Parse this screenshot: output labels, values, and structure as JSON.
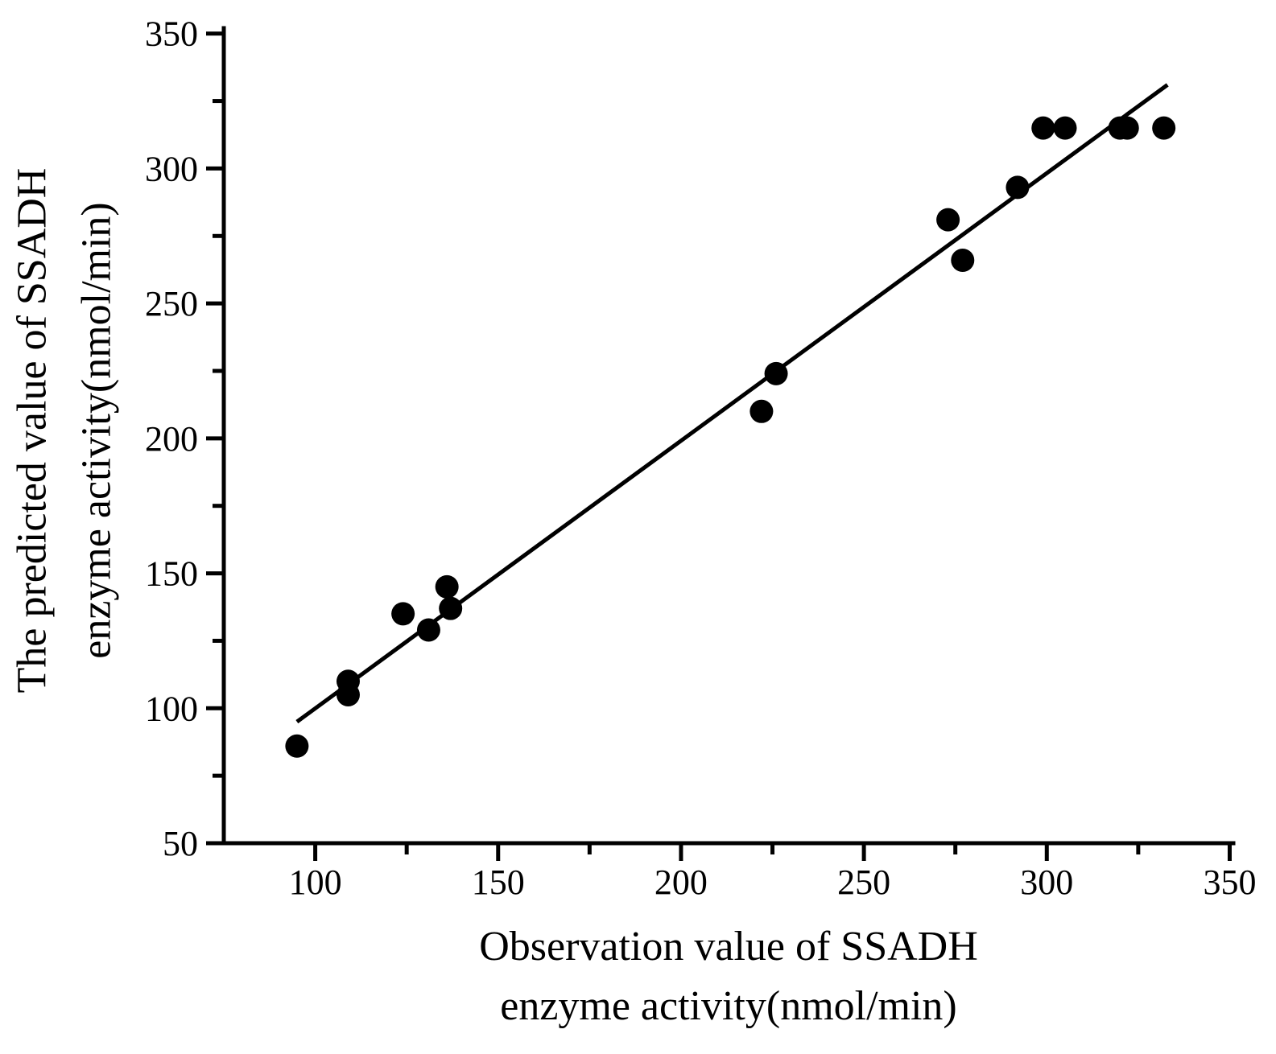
{
  "chart_data": {
    "type": "scatter",
    "title": "",
    "xlabel": "Observation value of SSADH enzyme activity(nmol/min)",
    "ylabel": "The predicted value of SSADH enzyme activity(nmol/min)",
    "xlabel_lines": [
      "Observation value of SSADH",
      "enzyme activity(nmol/min)"
    ],
    "ylabel_lines": [
      "The predicted value of SSADH",
      "enzyme activity(nmol/min)"
    ],
    "xlim": [
      75,
      351
    ],
    "ylim": [
      50,
      352
    ],
    "x_ticks_major": [
      100,
      150,
      200,
      250,
      300,
      350
    ],
    "x_ticks_minor": [
      125,
      175,
      225,
      275,
      325
    ],
    "y_ticks_major": [
      50,
      100,
      150,
      200,
      250,
      300,
      350
    ],
    "y_ticks_minor": [
      75,
      125,
      175,
      225,
      275,
      325
    ],
    "grid": false,
    "legend": null,
    "points": [
      [
        95,
        86
      ],
      [
        109,
        110
      ],
      [
        109,
        105
      ],
      [
        124,
        135
      ],
      [
        131,
        129
      ],
      [
        136,
        145
      ],
      [
        137,
        137
      ],
      [
        222,
        210
      ],
      [
        226,
        224
      ],
      [
        273,
        281
      ],
      [
        277,
        266
      ],
      [
        292,
        293
      ],
      [
        299,
        315
      ],
      [
        305,
        315
      ],
      [
        320,
        315
      ],
      [
        322,
        315
      ],
      [
        332,
        315
      ]
    ],
    "fit_line": {
      "x1": 95,
      "y1": 95,
      "x2": 333,
      "y2": 331
    },
    "colors": {
      "marker": "#000000",
      "fit_line": "#000000",
      "axis": "#000000",
      "text": "#000000",
      "background": "#ffffff"
    }
  }
}
